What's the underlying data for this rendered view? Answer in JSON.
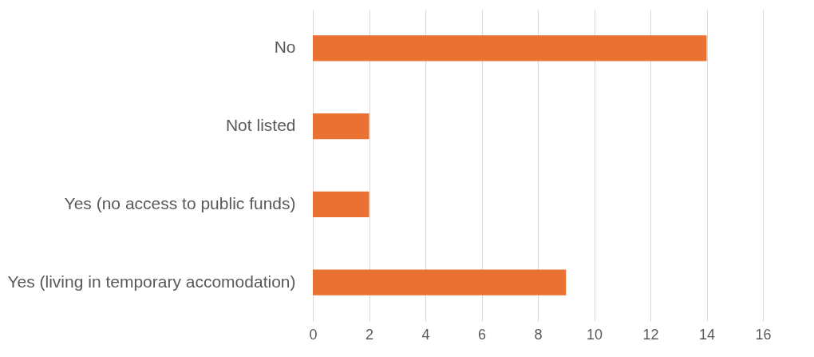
{
  "chart_data": {
    "type": "bar",
    "orientation": "horizontal",
    "categories": [
      "No",
      "Not listed",
      "Yes (no access to public funds)",
      "Yes (living in temporary accomodation)"
    ],
    "values": [
      14,
      2,
      2,
      9
    ],
    "color": "#e97132",
    "xlim": [
      0,
      16
    ],
    "xticks": [
      0,
      2,
      4,
      6,
      8,
      10,
      12,
      14,
      16
    ],
    "grid": "x"
  }
}
